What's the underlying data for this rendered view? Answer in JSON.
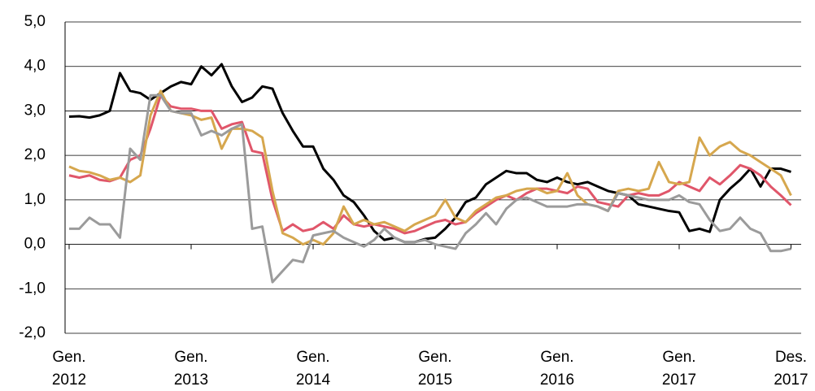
{
  "chart_data": {
    "type": "line",
    "categories": [
      "Gen.\n2012",
      null,
      null,
      null,
      null,
      null,
      null,
      null,
      null,
      null,
      null,
      null,
      "Gen.\n2013",
      null,
      null,
      null,
      null,
      null,
      null,
      null,
      null,
      null,
      null,
      null,
      "Gen.\n2014",
      null,
      null,
      null,
      null,
      null,
      null,
      null,
      null,
      null,
      null,
      null,
      "Gen.\n2015",
      null,
      null,
      null,
      null,
      null,
      null,
      null,
      null,
      null,
      null,
      null,
      "Gen.\n2016",
      null,
      null,
      null,
      null,
      null,
      null,
      null,
      null,
      null,
      null,
      null,
      "Gen.\n2017",
      null,
      null,
      null,
      null,
      null,
      null,
      null,
      null,
      null,
      null,
      "Des.\n2017"
    ],
    "series": [
      {
        "color": "#000000",
        "values": [
          2.87,
          2.88,
          2.85,
          2.9,
          3.0,
          3.85,
          3.45,
          3.4,
          3.25,
          3.4,
          3.55,
          3.65,
          3.6,
          4.0,
          3.8,
          4.05,
          3.55,
          3.2,
          3.3,
          3.55,
          3.5,
          2.95,
          2.55,
          2.2,
          2.2,
          1.7,
          1.45,
          1.1,
          0.95,
          0.65,
          0.3,
          0.1,
          0.15,
          0.05,
          0.05,
          0.12,
          0.15,
          0.35,
          0.6,
          0.95,
          1.05,
          1.35,
          1.5,
          1.65,
          1.6,
          1.6,
          1.45,
          1.4,
          1.5,
          1.4,
          1.35,
          1.4,
          1.3,
          1.2,
          1.15,
          1.1,
          0.9,
          0.85,
          0.8,
          0.75,
          0.72,
          0.3,
          0.35,
          0.28,
          1.0,
          1.25,
          1.45,
          1.7,
          1.3,
          1.7,
          1.7,
          1.63
        ]
      },
      {
        "color": "#e0566a",
        "values": [
          1.55,
          1.5,
          1.55,
          1.45,
          1.42,
          1.5,
          1.9,
          2.0,
          2.6,
          3.35,
          3.1,
          3.05,
          3.05,
          3.0,
          3.0,
          2.6,
          2.7,
          2.75,
          2.1,
          2.05,
          1.0,
          0.3,
          0.45,
          0.3,
          0.35,
          0.5,
          0.35,
          0.65,
          0.45,
          0.4,
          0.45,
          0.4,
          0.35,
          0.25,
          0.3,
          0.4,
          0.5,
          0.55,
          0.45,
          0.5,
          0.7,
          0.85,
          1.0,
          1.1,
          1.0,
          1.15,
          1.25,
          1.25,
          1.2,
          1.15,
          1.3,
          1.25,
          0.95,
          0.9,
          0.85,
          1.1,
          1.15,
          1.1,
          1.1,
          1.2,
          1.4,
          1.3,
          1.2,
          1.5,
          1.35,
          1.55,
          1.78,
          1.7,
          1.55,
          1.3,
          1.1,
          0.88
        ]
      },
      {
        "color": "#d6a74e",
        "values": [
          1.75,
          1.65,
          1.62,
          1.55,
          1.45,
          1.5,
          1.4,
          1.55,
          2.9,
          3.45,
          3.0,
          2.95,
          2.9,
          2.8,
          2.85,
          2.15,
          2.6,
          2.6,
          2.55,
          2.4,
          1.2,
          0.25,
          0.15,
          0.0,
          0.1,
          0.0,
          0.25,
          0.85,
          0.45,
          0.55,
          0.45,
          0.5,
          0.4,
          0.3,
          0.45,
          0.55,
          0.65,
          1.0,
          0.6,
          0.5,
          0.75,
          0.9,
          1.05,
          1.1,
          1.2,
          1.25,
          1.25,
          1.15,
          1.2,
          1.6,
          1.1,
          0.9,
          0.85,
          0.75,
          1.2,
          1.25,
          1.2,
          1.25,
          1.85,
          1.4,
          1.35,
          1.4,
          2.4,
          2.0,
          2.2,
          2.3,
          2.1,
          2.0,
          1.85,
          1.7,
          1.55,
          1.1
        ]
      },
      {
        "color": "#9b9b9b",
        "values": [
          0.35,
          0.35,
          0.6,
          0.45,
          0.45,
          0.15,
          2.15,
          1.9,
          3.35,
          3.35,
          3.0,
          2.95,
          2.95,
          2.45,
          2.55,
          2.45,
          2.6,
          2.7,
          0.35,
          0.4,
          -0.85,
          -0.6,
          -0.35,
          -0.4,
          0.2,
          0.25,
          0.3,
          0.15,
          0.05,
          -0.05,
          0.1,
          0.35,
          0.15,
          0.05,
          0.05,
          0.1,
          0.0,
          -0.05,
          -0.1,
          0.25,
          0.45,
          0.7,
          0.45,
          0.8,
          1.0,
          1.05,
          0.95,
          0.85,
          0.85,
          0.85,
          0.9,
          0.9,
          0.85,
          0.75,
          1.15,
          1.1,
          1.05,
          1.0,
          1.0,
          1.0,
          1.1,
          0.95,
          0.9,
          0.55,
          0.3,
          0.35,
          0.6,
          0.35,
          0.25,
          -0.15,
          -0.15,
          -0.1
        ]
      }
    ],
    "ylim": [
      -2,
      5
    ],
    "yticks": [
      {
        "value": -2,
        "label": "-2,0"
      },
      {
        "value": -1,
        "label": "-1,0"
      },
      {
        "value": 0,
        "label": "0,0"
      },
      {
        "value": 1,
        "label": "1,0"
      },
      {
        "value": 2,
        "label": "2,0"
      },
      {
        "value": 3,
        "label": "3,0"
      },
      {
        "value": 4,
        "label": "4,0"
      },
      {
        "value": 5,
        "label": "5,0"
      }
    ],
    "grid": true
  }
}
